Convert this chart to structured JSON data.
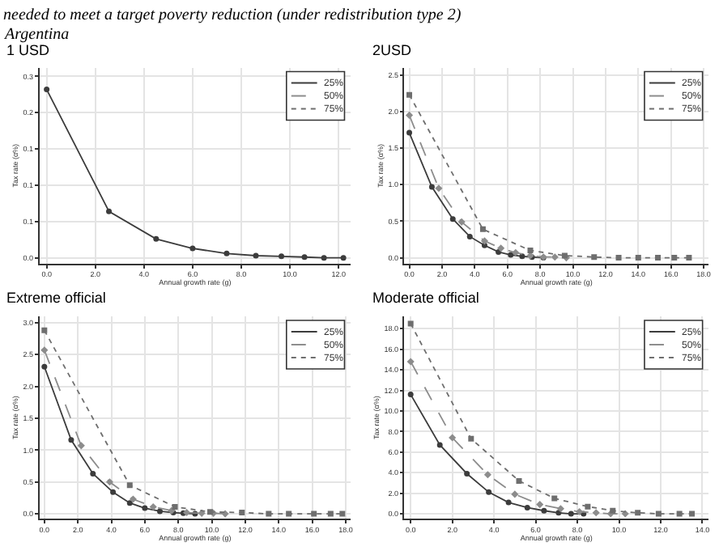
{
  "chart_data": [
    {
      "type": "line",
      "title": "1 USD",
      "annotations": [
        "needed to meet a target poverty reduction (under redistribution type 2)",
        "Argentina"
      ],
      "xlabel": "Annual growth rate (g)",
      "ylabel": "Tax rate (α%)",
      "grid": true,
      "legend": "top right",
      "xlim": [
        -0.3,
        12.5
      ],
      "xticks": [
        {
          "value": 0,
          "label": "0.0"
        },
        {
          "value": 2,
          "label": "2.0"
        },
        {
          "value": 4,
          "label": "4.0"
        },
        {
          "value": 6,
          "label": "6.0"
        },
        {
          "value": 8,
          "label": "8.0"
        },
        {
          "value": 10,
          "label": "10.0"
        },
        {
          "value": 12,
          "label": "12.0"
        }
      ],
      "ylim": [
        -0.008,
        0.262
      ],
      "yticks": [
        {
          "value": 0,
          "label": "0.0"
        },
        {
          "value": 0.05,
          "label": "0.1"
        },
        {
          "value": 0.1,
          "label": "0.1"
        },
        {
          "value": 0.15,
          "label": "0.1"
        },
        {
          "value": 0.2,
          "label": "0.2"
        },
        {
          "value": 0.25,
          "label": "0.3"
        }
      ],
      "series": [
        {
          "name": "25%",
          "color": "#3c3c3c",
          "marker": "circle",
          "line_style": "solid",
          "x": [
            0,
            2.56,
            4.5,
            6.0,
            7.4,
            8.6,
            9.65,
            10.6,
            11.4,
            12.2
          ],
          "values": [
            0.232,
            0.064,
            0.026,
            0.013,
            0.006,
            0.003,
            0.002,
            0.001,
            0,
            0
          ]
        },
        {
          "name": "50%",
          "color": "#8c8c8c",
          "marker": "diamond",
          "line_style": "dashed",
          "values": [
            null
          ]
        },
        {
          "name": "75%",
          "color": "#6e6e6e",
          "marker": "square",
          "line_style": "dotted",
          "values": [
            null
          ]
        }
      ]
    },
    {
      "type": "line",
      "title": "2USD",
      "xlabel": "Annual growth rate (g)",
      "ylabel": "Tax rate (α%)",
      "grid": true,
      "legend": "top right",
      "xlim": [
        -0.3,
        18.3
      ],
      "xticks": [
        {
          "value": 0,
          "label": "0.0"
        },
        {
          "value": 2,
          "label": "2.0"
        },
        {
          "value": 4,
          "label": "4.0"
        },
        {
          "value": 6,
          "label": "6.0"
        },
        {
          "value": 8,
          "label": "8.0"
        },
        {
          "value": 10,
          "label": "10.0"
        },
        {
          "value": 12,
          "label": "12.0"
        },
        {
          "value": 14,
          "label": "14.0"
        },
        {
          "value": 16,
          "label": "16.0"
        },
        {
          "value": 18,
          "label": "18.0"
        }
      ],
      "ylim": [
        -0.08,
        2.6
      ],
      "yticks": [
        {
          "value": 0,
          "label": "0.0"
        },
        {
          "value": 0.5,
          "label": "0.5"
        },
        {
          "value": 1,
          "label": "1.0"
        },
        {
          "value": 1.5,
          "label": "1.5"
        },
        {
          "value": 2,
          "label": "2.0"
        },
        {
          "value": 2.5,
          "label": "2.5"
        }
      ],
      "series": [
        {
          "name": "25%",
          "color": "#3c3c3c",
          "marker": "circle",
          "line_style": "solid",
          "x": [
            0,
            1.38,
            2.66,
            3.7,
            4.6,
            5.45,
            6.2,
            6.9,
            7.5,
            8.2
          ],
          "values": [
            1.71,
            0.97,
            0.53,
            0.29,
            0.17,
            0.08,
            0.04,
            0.02,
            0.01,
            0
          ]
        },
        {
          "name": "50%",
          "color": "#8c8c8c",
          "marker": "diamond",
          "line_style": "dashed",
          "x": [
            0,
            1.8,
            3.2,
            4.6,
            5.6,
            6.5,
            7.4,
            8.2,
            8.9,
            9.6
          ],
          "values": [
            1.95,
            0.95,
            0.49,
            0.23,
            0.13,
            0.07,
            0.03,
            0.01,
            0.01,
            0
          ]
        },
        {
          "name": "75%",
          "color": "#6e6e6e",
          "marker": "square",
          "line_style": "dotted",
          "x": [
            0,
            4.5,
            7.4,
            9.5,
            11.3,
            12.8,
            14.0,
            15.2,
            16.2,
            17.1
          ],
          "values": [
            2.23,
            0.39,
            0.1,
            0.03,
            0.01,
            0,
            0,
            0,
            0,
            0
          ]
        }
      ]
    },
    {
      "type": "line",
      "title": "Extreme official",
      "xlabel": "Annual growth rate (g)",
      "ylabel": "Tax rate (α%)",
      "grid": true,
      "legend": "top right",
      "xlim": [
        -0.3,
        18.3
      ],
      "xticks": [
        {
          "value": 0,
          "label": "0.0"
        },
        {
          "value": 2,
          "label": "2.0"
        },
        {
          "value": 4,
          "label": "4.0"
        },
        {
          "value": 6,
          "label": "6.0"
        },
        {
          "value": 8,
          "label": "8.0"
        },
        {
          "value": 10,
          "label": "10.0"
        },
        {
          "value": 12,
          "label": "12.0"
        },
        {
          "value": 14,
          "label": "14.0"
        },
        {
          "value": 16,
          "label": "16.0"
        },
        {
          "value": 18,
          "label": "18.0"
        }
      ],
      "ylim": [
        -0.08,
        3.1
      ],
      "yticks": [
        {
          "value": 0,
          "label": "0.0"
        },
        {
          "value": 0.5,
          "label": "0.5"
        },
        {
          "value": 1,
          "label": "1.0"
        },
        {
          "value": 1.5,
          "label": "1.5"
        },
        {
          "value": 2,
          "label": "2.0"
        },
        {
          "value": 2.5,
          "label": "2.5"
        },
        {
          "value": 3,
          "label": "3.0"
        }
      ],
      "series": [
        {
          "name": "25%",
          "color": "#3c3c3c",
          "marker": "circle",
          "line_style": "solid",
          "x": [
            0,
            1.6,
            2.9,
            4.1,
            5.1,
            6.0,
            6.9,
            7.7,
            8.3,
            9.0
          ],
          "values": [
            2.31,
            1.16,
            0.63,
            0.34,
            0.17,
            0.09,
            0.04,
            0.02,
            0.01,
            0
          ]
        },
        {
          "name": "50%",
          "color": "#8c8c8c",
          "marker": "diamond",
          "line_style": "dashed",
          "x": [
            0,
            2.2,
            3.9,
            5.3,
            6.5,
            7.6,
            8.5,
            9.4,
            10.1,
            10.8
          ],
          "values": [
            2.57,
            1.07,
            0.5,
            0.23,
            0.11,
            0.05,
            0.02,
            0.01,
            0.01,
            0
          ]
        },
        {
          "name": "75%",
          "color": "#6e6e6e",
          "marker": "square",
          "line_style": "dotted",
          "x": [
            0,
            5.1,
            7.8,
            9.9,
            11.8,
            13.4,
            14.6,
            16.1,
            17.1,
            17.8
          ],
          "values": [
            2.88,
            0.45,
            0.11,
            0.03,
            0.02,
            0,
            0,
            0,
            0,
            0
          ]
        }
      ]
    },
    {
      "type": "line",
      "title": "Moderate official",
      "xlabel": "Annual growth rate (g)",
      "ylabel": "Tax rate (α%)",
      "grid": true,
      "legend": "top right",
      "xlim": [
        -0.3,
        14.3
      ],
      "xticks": [
        {
          "value": 0,
          "label": "0.0"
        },
        {
          "value": 2,
          "label": "2.0"
        },
        {
          "value": 4,
          "label": "4.0"
        },
        {
          "value": 6,
          "label": "6.0"
        },
        {
          "value": 8,
          "label": "8.0"
        },
        {
          "value": 10,
          "label": "10.0"
        },
        {
          "value": 12,
          "label": "12.0"
        },
        {
          "value": 14,
          "label": "14.0"
        }
      ],
      "ylim": [
        -0.5,
        19.2
      ],
      "yticks": [
        {
          "value": 0,
          "label": "0.0"
        },
        {
          "value": 2,
          "label": "2.0"
        },
        {
          "value": 4,
          "label": "4.0"
        },
        {
          "value": 6,
          "label": "6.0"
        },
        {
          "value": 8,
          "label": "8.0"
        },
        {
          "value": 10,
          "label": "10.0"
        },
        {
          "value": 12,
          "label": "12.0"
        },
        {
          "value": 14,
          "label": "14.0"
        },
        {
          "value": 16,
          "label": "16.0"
        },
        {
          "value": 18,
          "label": "18.0"
        }
      ],
      "series": [
        {
          "name": "25%",
          "color": "#3c3c3c",
          "marker": "circle",
          "line_style": "solid",
          "x": [
            0,
            1.4,
            2.7,
            3.75,
            4.7,
            5.6,
            6.4,
            7.1,
            7.7,
            8.3
          ],
          "values": [
            11.6,
            6.7,
            3.9,
            2.1,
            1.1,
            0.6,
            0.3,
            0.1,
            0,
            0
          ]
        },
        {
          "name": "50%",
          "color": "#8c8c8c",
          "marker": "diamond",
          "line_style": "dashed",
          "x": [
            0,
            2.0,
            3.7,
            5.0,
            6.2,
            7.2,
            8.1,
            8.9,
            9.6,
            10.3
          ],
          "values": [
            14.8,
            7.4,
            3.8,
            1.9,
            0.9,
            0.5,
            0.2,
            0.1,
            0,
            0
          ]
        },
        {
          "name": "75%",
          "color": "#6e6e6e",
          "marker": "square",
          "line_style": "dotted",
          "x": [
            0,
            2.9,
            5.2,
            6.9,
            8.5,
            9.7,
            10.9,
            11.9,
            12.9,
            13.5
          ],
          "values": [
            18.5,
            7.3,
            3.2,
            1.5,
            0.7,
            0.3,
            0.1,
            0,
            0,
            0
          ]
        }
      ]
    }
  ]
}
